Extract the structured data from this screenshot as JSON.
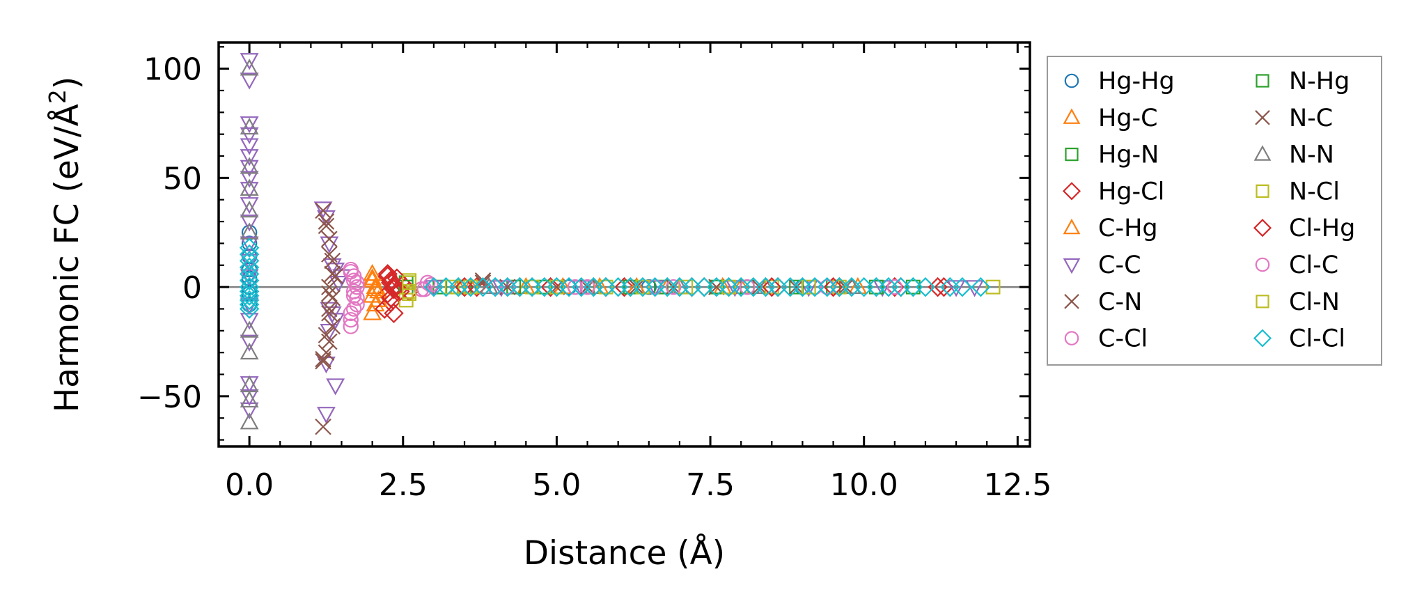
{
  "chart_data": {
    "type": "scatter",
    "title": "",
    "xlabel": "Distance (Å)",
    "ylabel_parts": [
      "Harmonic FC (eV/Å",
      "2",
      ")"
    ],
    "xlim": [
      -0.5,
      12.7
    ],
    "ylim": [
      -73,
      112
    ],
    "x_ticks": [
      0.0,
      2.5,
      5.0,
      7.5,
      10.0,
      12.5
    ],
    "x_tick_labels": [
      "0.0",
      "2.5",
      "5.0",
      "7.5",
      "10.0",
      "12.5"
    ],
    "y_ticks": [
      -50,
      0,
      50,
      100
    ],
    "y_tick_labels": [
      "−50",
      "0",
      "50",
      "100"
    ],
    "reference_line_y": 0,
    "legend_columns": 2,
    "series": [
      {
        "name": "Hg-Hg",
        "marker": "circle",
        "color": "#1f77b4",
        "points": [
          [
            0,
            25
          ],
          [
            0,
            20
          ],
          [
            0,
            14
          ],
          [
            0,
            8
          ],
          [
            0,
            4
          ],
          [
            0,
            0
          ],
          [
            0,
            -3
          ],
          [
            0,
            -8
          ],
          [
            4.0,
            0
          ],
          [
            4.6,
            0
          ],
          [
            5.2,
            0
          ],
          [
            6.5,
            0
          ],
          [
            7.8,
            0
          ],
          [
            9.0,
            0
          ]
        ]
      },
      {
        "name": "Hg-C",
        "marker": "triangle-up",
        "color": "#ff7f0e",
        "points": [
          [
            2.0,
            6
          ],
          [
            2.0,
            3
          ],
          [
            2.05,
            0
          ],
          [
            2.0,
            -4
          ],
          [
            2.05,
            -8
          ],
          [
            2.0,
            -12
          ],
          [
            2.1,
            -2
          ],
          [
            3.4,
            0
          ],
          [
            4.5,
            0
          ],
          [
            5.7,
            0
          ],
          [
            6.8,
            0
          ],
          [
            8.0,
            0
          ],
          [
            9.6,
            0
          ]
        ]
      },
      {
        "name": "Hg-N",
        "marker": "square",
        "color": "#2ca02c",
        "points": [
          [
            2.55,
            2
          ],
          [
            3.1,
            0
          ],
          [
            4.3,
            0
          ],
          [
            5.5,
            0
          ],
          [
            6.7,
            0
          ],
          [
            8.1,
            0
          ],
          [
            9.5,
            0
          ],
          [
            10.8,
            0
          ]
        ]
      },
      {
        "name": "Hg-Cl",
        "marker": "diamond",
        "color": "#d62728",
        "points": [
          [
            2.25,
            5
          ],
          [
            2.3,
            2
          ],
          [
            2.35,
            0
          ],
          [
            2.25,
            -3
          ],
          [
            2.3,
            -7
          ],
          [
            2.35,
            -12
          ],
          [
            2.5,
            1
          ],
          [
            2.6,
            -2
          ],
          [
            3.7,
            0
          ],
          [
            4.9,
            0
          ],
          [
            6.1,
            0
          ],
          [
            7.4,
            0
          ],
          [
            8.6,
            0
          ],
          [
            9.6,
            0
          ],
          [
            10.5,
            0
          ],
          [
            11.3,
            0
          ]
        ]
      },
      {
        "name": "C-Hg",
        "marker": "triangle-up",
        "color": "#ff7f0e",
        "points": [
          [
            2.0,
            4
          ],
          [
            2.05,
            -1
          ],
          [
            2.1,
            -6
          ],
          [
            3.6,
            0
          ],
          [
            5.1,
            0
          ],
          [
            6.3,
            0
          ],
          [
            7.7,
            0
          ],
          [
            9.9,
            0
          ]
        ]
      },
      {
        "name": "C-C",
        "marker": "triangle-down",
        "color": "#9467bd",
        "points": [
          [
            0,
            104
          ],
          [
            0,
            95
          ],
          [
            0,
            75
          ],
          [
            0,
            70
          ],
          [
            0,
            65
          ],
          [
            0,
            60
          ],
          [
            0,
            55
          ],
          [
            0,
            50
          ],
          [
            0,
            45
          ],
          [
            0,
            38
          ],
          [
            0,
            30
          ],
          [
            0,
            20
          ],
          [
            0,
            12
          ],
          [
            0,
            5
          ],
          [
            0,
            -8
          ],
          [
            0,
            -15
          ],
          [
            0,
            -25
          ],
          [
            0,
            -44
          ],
          [
            0,
            -50
          ],
          [
            0,
            -56
          ],
          [
            1.2,
            36
          ],
          [
            1.25,
            32
          ],
          [
            1.3,
            20
          ],
          [
            1.35,
            10
          ],
          [
            1.4,
            8
          ],
          [
            1.45,
            2
          ],
          [
            1.3,
            -10
          ],
          [
            1.35,
            -12
          ],
          [
            1.4,
            -15
          ],
          [
            1.3,
            -20
          ],
          [
            1.25,
            -35
          ],
          [
            1.4,
            -45
          ],
          [
            1.25,
            -58
          ],
          [
            1.5,
            5
          ],
          [
            3.0,
            0
          ],
          [
            4.1,
            0
          ],
          [
            5.4,
            0
          ],
          [
            6.6,
            0
          ],
          [
            7.9,
            0
          ],
          [
            9.1,
            0
          ],
          [
            10.3,
            0
          ],
          [
            11.5,
            0
          ],
          [
            11.8,
            0
          ]
        ]
      },
      {
        "name": "C-N",
        "marker": "x",
        "color": "#8c564b",
        "points": [
          [
            1.2,
            35
          ],
          [
            1.25,
            30
          ],
          [
            1.3,
            22
          ],
          [
            1.35,
            12
          ],
          [
            1.4,
            5
          ],
          [
            1.3,
            0
          ],
          [
            1.35,
            -5
          ],
          [
            1.3,
            -10
          ],
          [
            1.35,
            -18
          ],
          [
            1.3,
            -25
          ],
          [
            1.25,
            -30
          ],
          [
            1.2,
            -33
          ],
          [
            1.2,
            -64
          ],
          [
            3.8,
            3
          ],
          [
            4.2,
            0
          ],
          [
            5.5,
            0
          ],
          [
            6.9,
            0
          ],
          [
            8.3,
            0
          ],
          [
            9.7,
            0
          ]
        ]
      },
      {
        "name": "C-Cl",
        "marker": "circle",
        "color": "#e377c2",
        "points": [
          [
            1.65,
            8
          ],
          [
            1.7,
            5
          ],
          [
            1.75,
            2
          ],
          [
            1.7,
            -2
          ],
          [
            1.75,
            -5
          ],
          [
            1.7,
            -10
          ],
          [
            1.65,
            -15
          ],
          [
            1.65,
            -18
          ],
          [
            2.9,
            2
          ],
          [
            2.8,
            -1
          ],
          [
            4.0,
            0
          ],
          [
            5.3,
            0
          ],
          [
            6.6,
            0
          ],
          [
            7.8,
            0
          ],
          [
            9.2,
            0
          ],
          [
            10.5,
            0
          ]
        ]
      },
      {
        "name": "N-Hg",
        "marker": "square",
        "color": "#2ca02c",
        "points": [
          [
            2.55,
            0
          ],
          [
            3.5,
            0
          ],
          [
            4.8,
            0
          ],
          [
            6.2,
            0
          ],
          [
            7.6,
            0
          ],
          [
            8.9,
            0
          ],
          [
            10.2,
            0
          ]
        ]
      },
      {
        "name": "N-C",
        "marker": "x",
        "color": "#8c564b",
        "points": [
          [
            1.25,
            28
          ],
          [
            1.3,
            15
          ],
          [
            1.35,
            6
          ],
          [
            1.3,
            -3
          ],
          [
            1.3,
            -12
          ],
          [
            1.25,
            -22
          ],
          [
            1.2,
            -34
          ],
          [
            3.8,
            2
          ],
          [
            5.0,
            0
          ],
          [
            6.3,
            0
          ],
          [
            7.6,
            0
          ],
          [
            8.9,
            0
          ]
        ]
      },
      {
        "name": "N-N",
        "marker": "triangle-up",
        "color": "#7f7f7f",
        "points": [
          [
            0,
            100
          ],
          [
            0,
            73
          ],
          [
            0,
            55
          ],
          [
            0,
            45
          ],
          [
            0,
            35
          ],
          [
            0,
            25
          ],
          [
            0,
            -20
          ],
          [
            0,
            -30
          ],
          [
            0,
            -45
          ],
          [
            0,
            -52
          ],
          [
            0,
            -62
          ],
          [
            3.9,
            0
          ],
          [
            5.6,
            0
          ],
          [
            7.0,
            0
          ],
          [
            8.4,
            0
          ],
          [
            9.8,
            0
          ]
        ]
      },
      {
        "name": "N-Cl",
        "marker": "square",
        "color": "#bcbd22",
        "points": [
          [
            2.6,
            3
          ],
          [
            2.6,
            -3
          ],
          [
            2.55,
            -6
          ],
          [
            3.3,
            0
          ],
          [
            4.6,
            0
          ],
          [
            5.8,
            0
          ],
          [
            7.1,
            0
          ],
          [
            8.5,
            0
          ],
          [
            9.6,
            0
          ],
          [
            12.1,
            0
          ]
        ]
      },
      {
        "name": "Cl-Hg",
        "marker": "diamond",
        "color": "#d62728",
        "points": [
          [
            2.25,
            6
          ],
          [
            2.3,
            3
          ],
          [
            2.35,
            -1
          ],
          [
            2.3,
            -5
          ],
          [
            2.2,
            -10
          ],
          [
            2.4,
            4
          ],
          [
            2.45,
            -2
          ],
          [
            3.5,
            0
          ],
          [
            4.4,
            0
          ],
          [
            5.8,
            0
          ],
          [
            7.2,
            0
          ],
          [
            8.5,
            0
          ],
          [
            9.5,
            0
          ],
          [
            10.6,
            0
          ],
          [
            11.2,
            0
          ]
        ]
      },
      {
        "name": "Cl-C",
        "marker": "circle",
        "color": "#e377c2",
        "points": [
          [
            1.65,
            7
          ],
          [
            1.7,
            3
          ],
          [
            1.75,
            0
          ],
          [
            1.7,
            -4
          ],
          [
            1.75,
            -8
          ],
          [
            1.65,
            -12
          ],
          [
            2.95,
            1
          ],
          [
            2.85,
            -1
          ],
          [
            4.2,
            0
          ],
          [
            5.5,
            0
          ],
          [
            6.9,
            0
          ],
          [
            8.1,
            0
          ],
          [
            9.4,
            0
          ]
        ]
      },
      {
        "name": "Cl-N",
        "marker": "square",
        "color": "#bcbd22",
        "points": [
          [
            2.6,
            2
          ],
          [
            2.6,
            -2
          ],
          [
            3.6,
            0
          ],
          [
            5.0,
            0
          ],
          [
            6.4,
            0
          ],
          [
            7.8,
            0
          ],
          [
            9.1,
            0
          ]
        ]
      },
      {
        "name": "Cl-Cl",
        "marker": "diamond",
        "color": "#17becf",
        "points": [
          [
            0,
            18
          ],
          [
            0,
            15
          ],
          [
            0,
            12
          ],
          [
            0,
            9
          ],
          [
            0,
            6
          ],
          [
            0,
            3
          ],
          [
            0,
            0
          ],
          [
            0,
            -2
          ],
          [
            0,
            -4
          ],
          [
            0,
            -6
          ],
          [
            0,
            -8
          ],
          [
            0,
            -10
          ],
          [
            3.0,
            0
          ],
          [
            3.2,
            0
          ],
          [
            3.4,
            0
          ],
          [
            3.6,
            0
          ],
          [
            3.8,
            0
          ],
          [
            4.0,
            0
          ],
          [
            4.2,
            0
          ],
          [
            4.4,
            0
          ],
          [
            4.6,
            0
          ],
          [
            4.8,
            0
          ],
          [
            5.0,
            0
          ],
          [
            5.2,
            0
          ],
          [
            5.4,
            0
          ],
          [
            5.6,
            0
          ],
          [
            5.8,
            0
          ],
          [
            6.0,
            0
          ],
          [
            6.2,
            0
          ],
          [
            6.4,
            0
          ],
          [
            6.6,
            0
          ],
          [
            6.8,
            0
          ],
          [
            7.0,
            0
          ],
          [
            7.2,
            0
          ],
          [
            7.4,
            0
          ],
          [
            7.6,
            0
          ],
          [
            7.8,
            0
          ],
          [
            8.0,
            0
          ],
          [
            8.2,
            0
          ],
          [
            8.4,
            0
          ],
          [
            8.6,
            0
          ],
          [
            8.8,
            0
          ],
          [
            9.0,
            0
          ],
          [
            9.2,
            0
          ],
          [
            9.4,
            0
          ],
          [
            9.6,
            0
          ],
          [
            9.8,
            0
          ],
          [
            10.0,
            0
          ],
          [
            10.2,
            0
          ],
          [
            10.4,
            0
          ],
          [
            10.6,
            0
          ],
          [
            10.8,
            0
          ],
          [
            11.0,
            0
          ],
          [
            11.4,
            0
          ],
          [
            11.6,
            0
          ],
          [
            11.9,
            0
          ]
        ]
      }
    ]
  }
}
